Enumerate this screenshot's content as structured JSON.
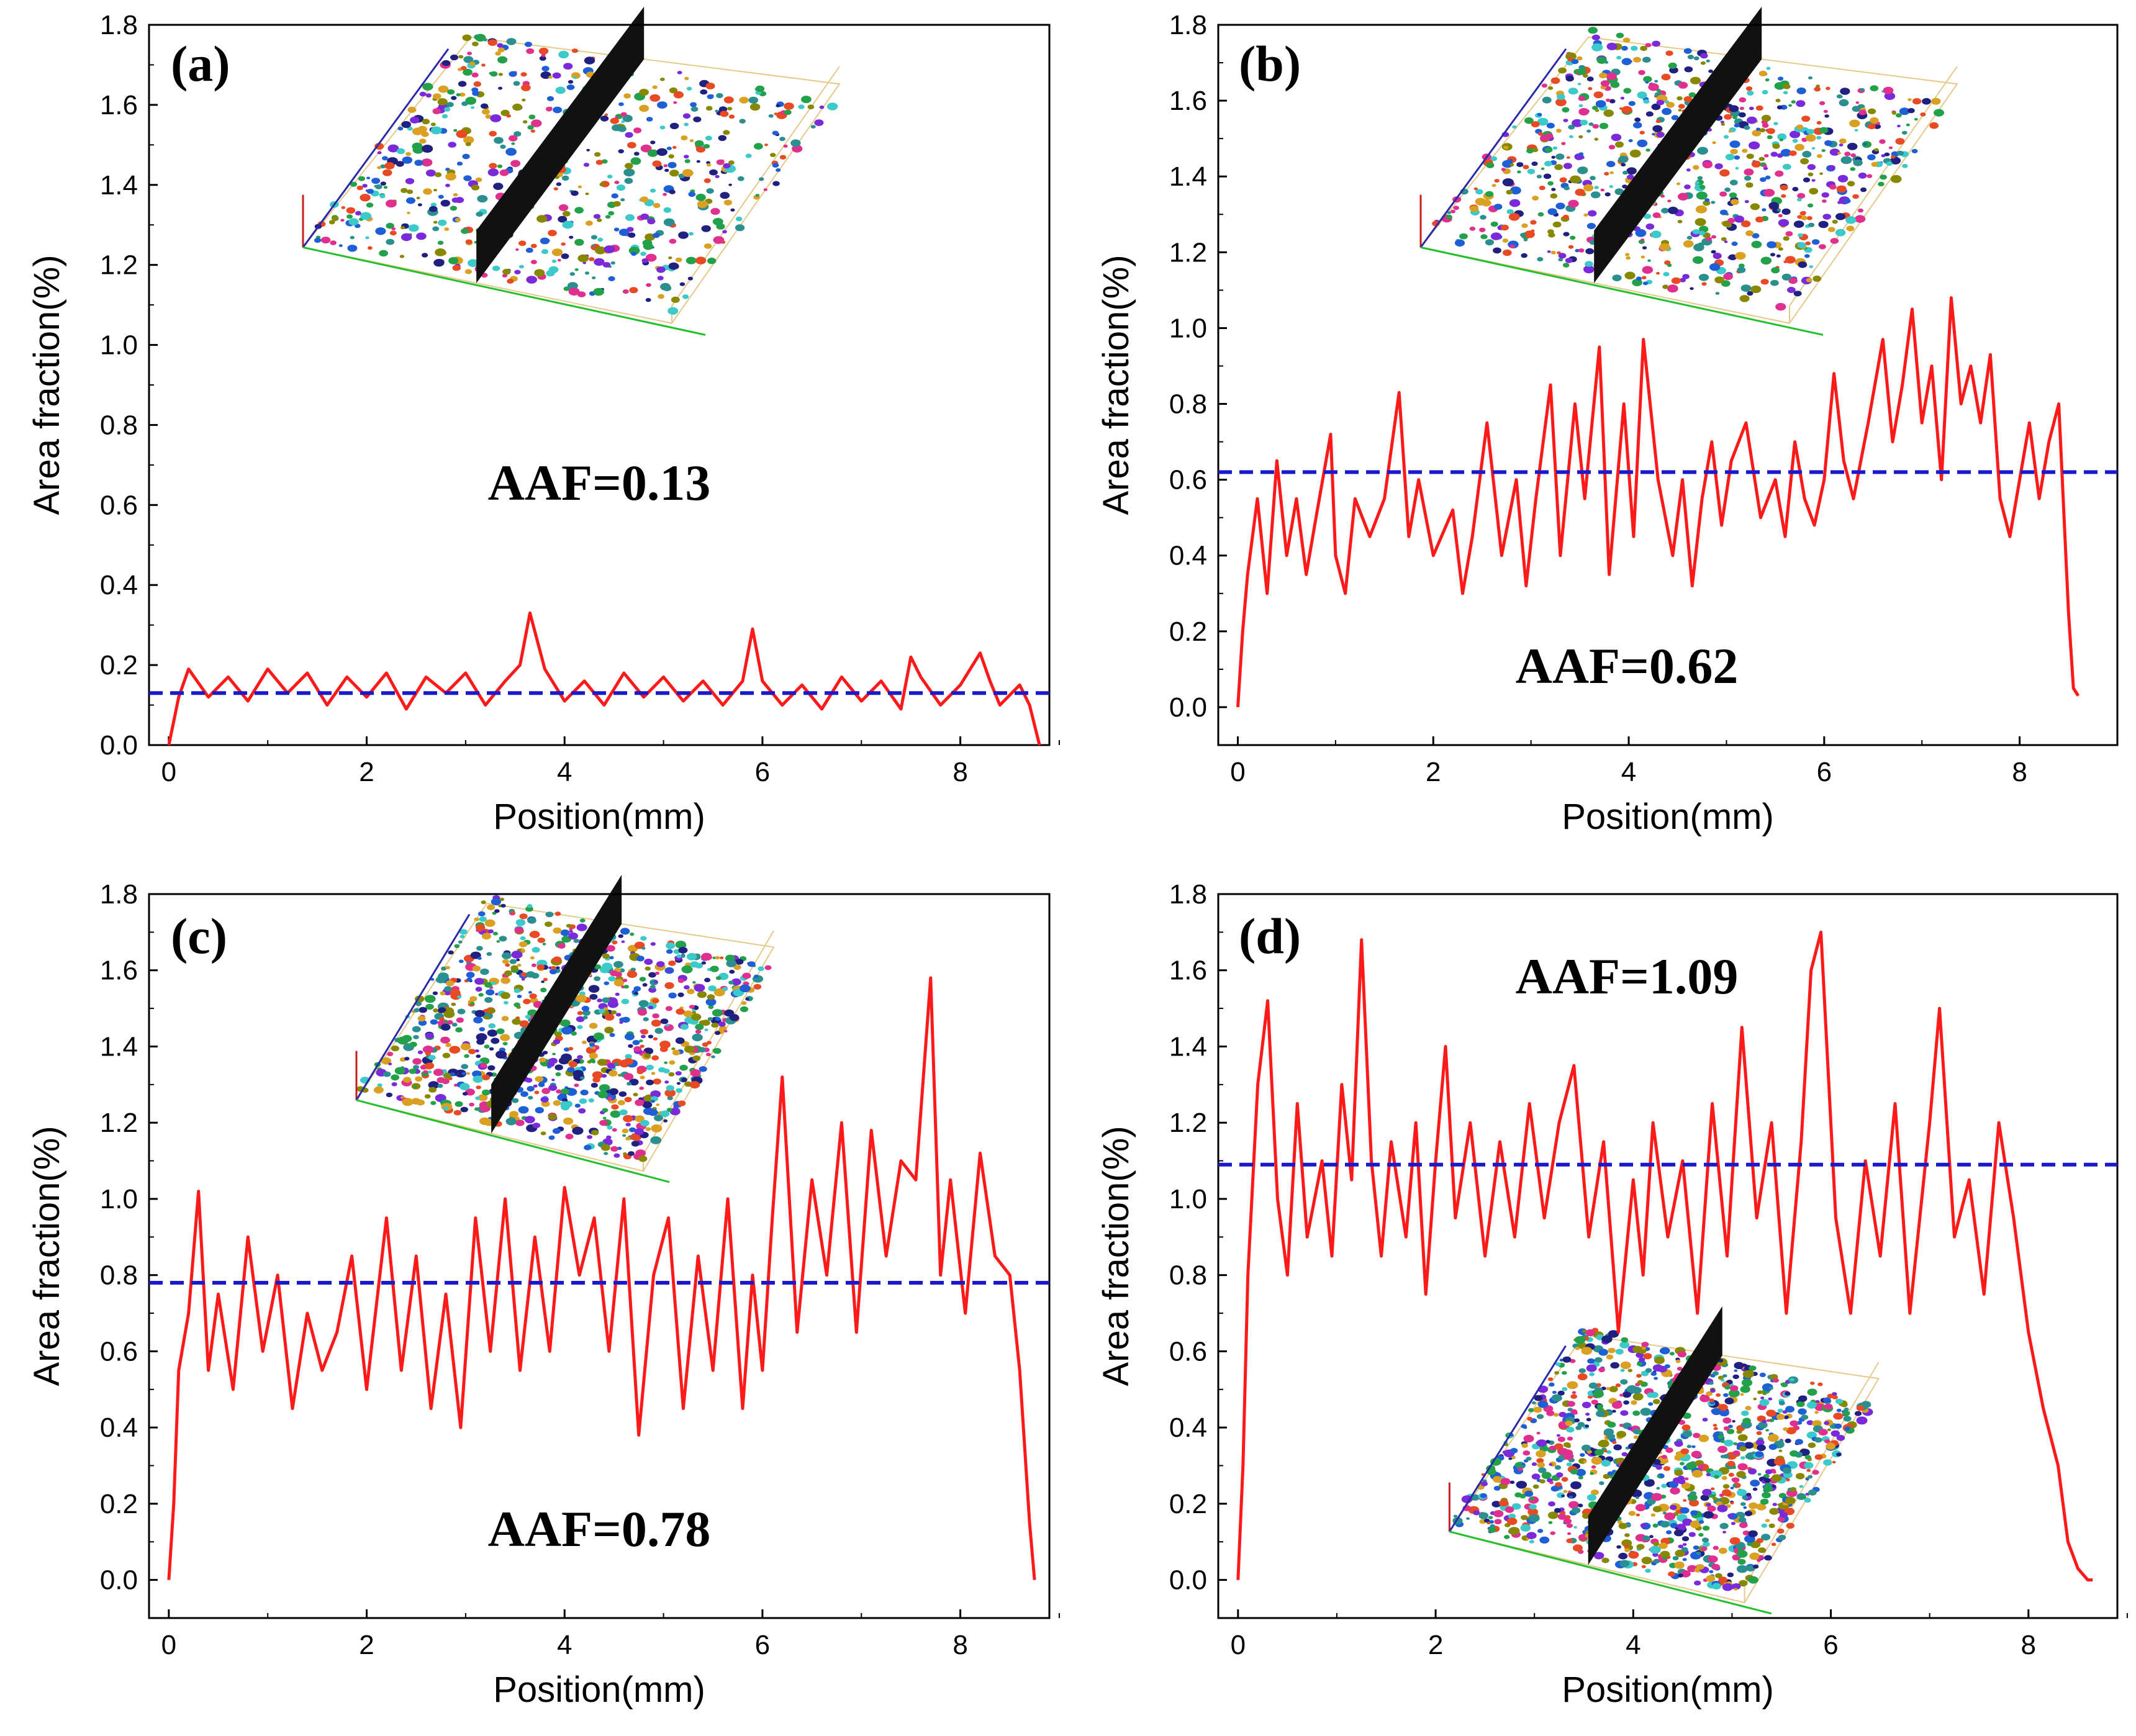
{
  "figure": {
    "colors": {
      "signal": "#ff1a1a",
      "average": "#1a1acc",
      "axis": "#000000"
    }
  },
  "chart_data": [
    {
      "id": "a",
      "type": "line",
      "panel_label": "(a)",
      "annotation": "AAF=0.13",
      "average": 0.13,
      "xlabel": "Position(mm)",
      "ylabel": "Area fraction(%)",
      "xlim": [
        -0.2,
        8.9
      ],
      "ylim": [
        0,
        1.8
      ],
      "xticks": [
        "0",
        "2",
        "4",
        "6",
        "8"
      ],
      "yticks": [
        "0.0",
        "0.2",
        "0.4",
        "0.6",
        "0.8",
        "1.0",
        "1.2",
        "1.4",
        "1.6",
        "1.8"
      ],
      "inset": "top",
      "series": [
        {
          "name": "area fraction",
          "x": [
            0,
            0.1,
            0.2,
            0.4,
            0.6,
            0.8,
            1.0,
            1.2,
            1.4,
            1.6,
            1.8,
            2.0,
            2.2,
            2.4,
            2.6,
            2.8,
            3.0,
            3.2,
            3.4,
            3.55,
            3.65,
            3.8,
            4.0,
            4.2,
            4.4,
            4.6,
            4.8,
            5.0,
            5.2,
            5.4,
            5.6,
            5.8,
            5.9,
            6.0,
            6.2,
            6.4,
            6.6,
            6.8,
            7.0,
            7.2,
            7.4,
            7.5,
            7.6,
            7.8,
            8.0,
            8.2,
            8.3,
            8.4,
            8.6,
            8.7,
            8.75,
            8.8
          ],
          "y": [
            0.0,
            0.12,
            0.19,
            0.12,
            0.17,
            0.11,
            0.19,
            0.13,
            0.18,
            0.1,
            0.17,
            0.12,
            0.18,
            0.09,
            0.17,
            0.13,
            0.18,
            0.1,
            0.16,
            0.2,
            0.33,
            0.19,
            0.11,
            0.16,
            0.1,
            0.18,
            0.12,
            0.17,
            0.11,
            0.16,
            0.1,
            0.16,
            0.29,
            0.16,
            0.1,
            0.15,
            0.09,
            0.17,
            0.11,
            0.16,
            0.09,
            0.22,
            0.17,
            0.1,
            0.15,
            0.23,
            0.16,
            0.1,
            0.15,
            0.1,
            0.05,
            0.0
          ]
        }
      ]
    },
    {
      "id": "b",
      "type": "line",
      "panel_label": "(b)",
      "annotation": "AAF=0.62",
      "average": 0.62,
      "xlabel": "Position(mm)",
      "ylabel": "Area fraction(%)",
      "xlim": [
        -0.2,
        9.0
      ],
      "ylim": [
        -0.1,
        1.8
      ],
      "xticks": [
        "0",
        "2",
        "4",
        "6",
        "8"
      ],
      "yticks": [
        "0.0",
        "0.2",
        "0.4",
        "0.6",
        "0.8",
        "1.0",
        "1.2",
        "1.4",
        "1.6",
        "1.8"
      ],
      "inset": "top",
      "series": [
        {
          "name": "area fraction",
          "x": [
            0,
            0.05,
            0.1,
            0.2,
            0.3,
            0.4,
            0.5,
            0.6,
            0.7,
            0.8,
            0.95,
            1.0,
            1.1,
            1.2,
            1.35,
            1.5,
            1.65,
            1.75,
            1.85,
            2.0,
            2.2,
            2.3,
            2.4,
            2.55,
            2.7,
            2.85,
            2.95,
            3.05,
            3.2,
            3.3,
            3.45,
            3.55,
            3.7,
            3.8,
            3.95,
            4.05,
            4.15,
            4.3,
            4.45,
            4.55,
            4.65,
            4.75,
            4.85,
            4.95,
            5.05,
            5.2,
            5.35,
            5.5,
            5.6,
            5.7,
            5.8,
            5.9,
            6.0,
            6.1,
            6.2,
            6.3,
            6.45,
            6.6,
            6.7,
            6.8,
            6.9,
            7.0,
            7.1,
            7.2,
            7.3,
            7.4,
            7.5,
            7.6,
            7.7,
            7.8,
            7.9,
            8.0,
            8.1,
            8.2,
            8.3,
            8.4,
            8.5,
            8.55,
            8.6
          ],
          "y": [
            0.0,
            0.2,
            0.35,
            0.55,
            0.3,
            0.65,
            0.4,
            0.55,
            0.35,
            0.5,
            0.72,
            0.4,
            0.3,
            0.55,
            0.45,
            0.55,
            0.83,
            0.45,
            0.6,
            0.4,
            0.52,
            0.3,
            0.45,
            0.75,
            0.4,
            0.6,
            0.32,
            0.55,
            0.85,
            0.4,
            0.8,
            0.55,
            0.95,
            0.35,
            0.8,
            0.45,
            0.97,
            0.6,
            0.4,
            0.6,
            0.32,
            0.55,
            0.7,
            0.48,
            0.65,
            0.75,
            0.5,
            0.6,
            0.45,
            0.7,
            0.55,
            0.48,
            0.6,
            0.88,
            0.65,
            0.55,
            0.75,
            0.97,
            0.7,
            0.85,
            1.05,
            0.75,
            0.9,
            0.6,
            1.08,
            0.8,
            0.9,
            0.75,
            0.93,
            0.55,
            0.45,
            0.6,
            0.75,
            0.55,
            0.7,
            0.8,
            0.25,
            0.05,
            0.03
          ]
        }
      ]
    },
    {
      "id": "c",
      "type": "line",
      "panel_label": "(c)",
      "annotation": "AAF=0.78",
      "average": 0.78,
      "xlabel": "Position(mm)",
      "ylabel": "Area fraction(%)",
      "xlim": [
        -0.2,
        8.9
      ],
      "ylim": [
        -0.1,
        1.8
      ],
      "xticks": [
        "0",
        "2",
        "4",
        "6",
        "8"
      ],
      "yticks": [
        "0.0",
        "0.2",
        "0.4",
        "0.6",
        "0.8",
        "1.0",
        "1.2",
        "1.4",
        "1.6",
        "1.8"
      ],
      "inset": "top",
      "series": [
        {
          "name": "area fraction",
          "x": [
            0,
            0.05,
            0.1,
            0.2,
            0.3,
            0.4,
            0.5,
            0.65,
            0.8,
            0.95,
            1.1,
            1.25,
            1.4,
            1.55,
            1.7,
            1.85,
            2.0,
            2.2,
            2.35,
            2.5,
            2.65,
            2.8,
            2.95,
            3.1,
            3.25,
            3.4,
            3.55,
            3.7,
            3.85,
            4.0,
            4.15,
            4.3,
            4.45,
            4.6,
            4.75,
            4.9,
            5.05,
            5.2,
            5.35,
            5.5,
            5.65,
            5.8,
            5.9,
            6.0,
            6.1,
            6.2,
            6.35,
            6.5,
            6.65,
            6.8,
            6.95,
            7.1,
            7.25,
            7.4,
            7.55,
            7.7,
            7.8,
            7.9,
            8.05,
            8.2,
            8.35,
            8.5,
            8.6,
            8.7,
            8.75
          ],
          "y": [
            0.0,
            0.2,
            0.55,
            0.7,
            1.02,
            0.55,
            0.75,
            0.5,
            0.9,
            0.6,
            0.8,
            0.45,
            0.7,
            0.55,
            0.65,
            0.85,
            0.5,
            0.95,
            0.55,
            0.85,
            0.45,
            0.75,
            0.4,
            0.95,
            0.6,
            1.0,
            0.55,
            0.9,
            0.6,
            1.03,
            0.8,
            0.95,
            0.6,
            1.0,
            0.38,
            0.8,
            0.95,
            0.45,
            0.85,
            0.55,
            1.0,
            0.45,
            0.8,
            0.55,
            0.95,
            1.32,
            0.65,
            1.05,
            0.8,
            1.2,
            0.65,
            1.18,
            0.85,
            1.1,
            1.05,
            1.58,
            0.8,
            1.05,
            0.7,
            1.12,
            0.85,
            0.8,
            0.55,
            0.15,
            0.0
          ]
        }
      ]
    },
    {
      "id": "d",
      "type": "line",
      "panel_label": "(d)",
      "annotation": "AAF=1.09",
      "average": 1.09,
      "xlabel": "Position(mm)",
      "ylabel": "Area fraction(%)",
      "xlim": [
        -0.2,
        8.9
      ],
      "ylim": [
        -0.1,
        1.8
      ],
      "xticks": [
        "0",
        "2",
        "4",
        "6",
        "8"
      ],
      "yticks": [
        "0.0",
        "0.2",
        "0.4",
        "0.6",
        "0.8",
        "1.0",
        "1.2",
        "1.4",
        "1.6",
        "1.8"
      ],
      "inset": "bottom",
      "series": [
        {
          "name": "area fraction",
          "x": [
            0,
            0.05,
            0.1,
            0.2,
            0.3,
            0.4,
            0.5,
            0.6,
            0.7,
            0.85,
            0.95,
            1.05,
            1.15,
            1.25,
            1.35,
            1.45,
            1.55,
            1.7,
            1.8,
            1.9,
            2.0,
            2.1,
            2.2,
            2.35,
            2.5,
            2.65,
            2.8,
            2.95,
            3.1,
            3.25,
            3.4,
            3.55,
            3.7,
            3.85,
            4.0,
            4.1,
            4.2,
            4.35,
            4.5,
            4.65,
            4.8,
            4.95,
            5.1,
            5.25,
            5.4,
            5.55,
            5.7,
            5.8,
            5.9,
            6.05,
            6.2,
            6.35,
            6.5,
            6.65,
            6.8,
            6.9,
            7.0,
            7.1,
            7.25,
            7.4,
            7.55,
            7.7,
            7.85,
            8.0,
            8.15,
            8.3,
            8.4,
            8.5,
            8.6,
            8.65
          ],
          "y": [
            0.0,
            0.3,
            0.8,
            1.3,
            1.52,
            1.0,
            0.8,
            1.25,
            0.9,
            1.1,
            0.85,
            1.3,
            1.05,
            1.68,
            1.1,
            0.85,
            1.15,
            0.9,
            1.2,
            0.75,
            1.1,
            1.4,
            0.95,
            1.2,
            0.85,
            1.15,
            0.9,
            1.25,
            0.95,
            1.2,
            1.35,
            0.9,
            1.15,
            0.65,
            1.05,
            0.8,
            1.2,
            0.9,
            1.1,
            0.7,
            1.25,
            0.85,
            1.45,
            0.95,
            1.2,
            0.7,
            1.15,
            1.6,
            1.7,
            0.95,
            0.7,
            1.1,
            0.85,
            1.25,
            0.7,
            0.95,
            1.2,
            1.5,
            0.9,
            1.05,
            0.75,
            1.2,
            0.95,
            0.65,
            0.45,
            0.3,
            0.1,
            0.03,
            0.0,
            0.0
          ]
        }
      ]
    }
  ]
}
